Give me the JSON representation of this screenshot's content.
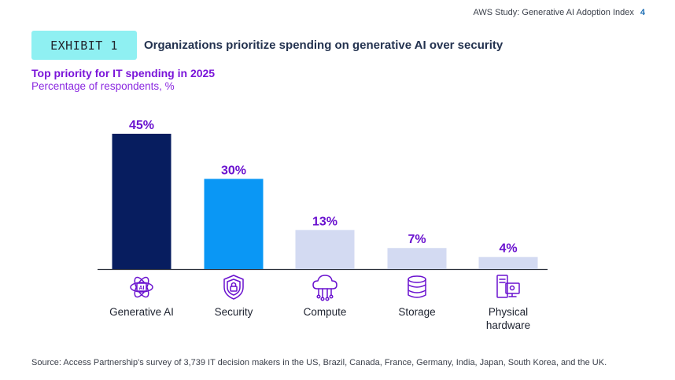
{
  "header": {
    "doc_title": "AWS Study: Generative AI Adoption Index",
    "page_number": "4"
  },
  "exhibit": {
    "badge": "EXHIBIT 1",
    "title": "Organizations prioritize spending on generative AI over security"
  },
  "chart_data": {
    "type": "bar",
    "title": "Top priority for IT spending in 2025",
    "subtitle": "Percentage of respondents, %",
    "categories": [
      "Generative AI",
      "Security",
      "Compute",
      "Storage",
      "Physical hardware"
    ],
    "category_lines": [
      [
        "Generative AI"
      ],
      [
        "Security"
      ],
      [
        "Compute"
      ],
      [
        "Storage"
      ],
      [
        "Physical",
        "hardware"
      ]
    ],
    "values": [
      45,
      30,
      13,
      7,
      4
    ],
    "value_labels": [
      "45%",
      "30%",
      "13%",
      "7%",
      "4%"
    ],
    "bar_colors": [
      "#071d5f",
      "#0a97f5",
      "#d3daf2",
      "#d3daf2",
      "#d3daf2"
    ],
    "icons": [
      "ai-brain-icon",
      "security-shield-icon",
      "cloud-compute-icon",
      "storage-database-icon",
      "hardware-computer-icon"
    ],
    "ylim": [
      0,
      45
    ],
    "grid": false,
    "label_color": "#6a12cf"
  },
  "source": "Source: Access Partnership's survey of 3,739 IT decision makers in the US, Brazil, Canada, France, Germany, India, Japan, South Korea, and the UK."
}
